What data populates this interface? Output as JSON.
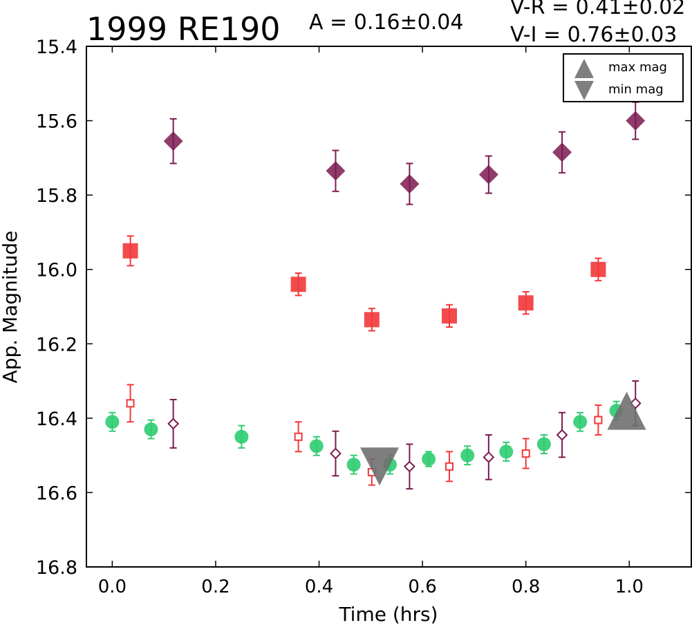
{
  "header": {
    "title": "1999 RE190",
    "amplitude": "A  = 0.16±0.04",
    "color_vr": "V-R = 0.41±0.02",
    "color_vi": "V-I  = 0.76±0.03"
  },
  "legend": {
    "items": [
      {
        "label": "max mag",
        "marker": "triangle-up",
        "color": "#7f7f7f"
      },
      {
        "label": "min mag",
        "marker": "triangle-down",
        "color": "#7f7f7f"
      }
    ]
  },
  "colors": {
    "green": "#2ecc71",
    "red": "#f2373a",
    "purple": "#7b1a50",
    "marker_gray": "#707070"
  },
  "chart_data": {
    "type": "scatter",
    "title": "1999 RE190",
    "xlabel": "Time (hrs)",
    "ylabel": "App. Magnitude",
    "xlim": [
      -0.05,
      1.12
    ],
    "ylim": [
      16.8,
      15.4
    ],
    "y_inverted": true,
    "x_ticks": [
      0.0,
      0.2,
      0.4,
      0.6,
      0.8,
      1.0
    ],
    "x_tick_labels": [
      "0.0",
      "0.2",
      "0.4",
      "0.6",
      "0.8",
      "1.0"
    ],
    "y_ticks": [
      15.4,
      15.6,
      15.8,
      16.0,
      16.2,
      16.4,
      16.6,
      16.8
    ],
    "y_tick_labels": [
      "15.4",
      "15.6",
      "15.8",
      "16.0",
      "16.2",
      "16.4",
      "16.6",
      "16.8"
    ],
    "grid": false,
    "legend_position": "top-right",
    "series": [
      {
        "marker": "circle",
        "filled": true,
        "color": "#2ecc71",
        "points": [
          {
            "x": 0.0,
            "y": 16.41,
            "err": 0.025
          },
          {
            "x": 0.075,
            "y": 16.43,
            "err": 0.025
          },
          {
            "x": 0.25,
            "y": 16.45,
            "err": 0.03
          },
          {
            "x": 0.395,
            "y": 16.475,
            "err": 0.025
          },
          {
            "x": 0.467,
            "y": 16.525,
            "err": 0.025
          },
          {
            "x": 0.537,
            "y": 16.525,
            "err": 0.025
          },
          {
            "x": 0.612,
            "y": 16.51,
            "err": 0.02
          },
          {
            "x": 0.687,
            "y": 16.5,
            "err": 0.025
          },
          {
            "x": 0.762,
            "y": 16.49,
            "err": 0.025
          },
          {
            "x": 0.835,
            "y": 16.47,
            "err": 0.025
          },
          {
            "x": 0.905,
            "y": 16.41,
            "err": 0.025
          },
          {
            "x": 0.975,
            "y": 16.38,
            "err": 0.025
          }
        ]
      },
      {
        "marker": "square",
        "filled": true,
        "color": "#f2373a",
        "points": [
          {
            "x": 0.035,
            "y": 15.95,
            "err": 0.04
          },
          {
            "x": 0.36,
            "y": 16.04,
            "err": 0.03
          },
          {
            "x": 0.502,
            "y": 16.135,
            "err": 0.03
          },
          {
            "x": 0.652,
            "y": 16.125,
            "err": 0.03
          },
          {
            "x": 0.8,
            "y": 16.09,
            "err": 0.03
          },
          {
            "x": 0.94,
            "y": 16.0,
            "err": 0.03
          }
        ]
      },
      {
        "marker": "diamond",
        "filled": true,
        "color": "#7b1a50",
        "points": [
          {
            "x": 0.118,
            "y": 15.655,
            "err": 0.06
          },
          {
            "x": 0.432,
            "y": 15.735,
            "err": 0.055
          },
          {
            "x": 0.575,
            "y": 15.77,
            "err": 0.055
          },
          {
            "x": 0.728,
            "y": 15.745,
            "err": 0.05
          },
          {
            "x": 0.87,
            "y": 15.685,
            "err": 0.055
          },
          {
            "x": 1.012,
            "y": 15.6,
            "err": 0.05
          }
        ]
      },
      {
        "marker": "square",
        "filled": false,
        "color": "#f2373a",
        "points": [
          {
            "x": 0.035,
            "y": 16.36,
            "err": 0.05
          },
          {
            "x": 0.36,
            "y": 16.45,
            "err": 0.04
          },
          {
            "x": 0.502,
            "y": 16.545,
            "err": 0.035
          },
          {
            "x": 0.652,
            "y": 16.53,
            "err": 0.04
          },
          {
            "x": 0.8,
            "y": 16.495,
            "err": 0.04
          },
          {
            "x": 0.94,
            "y": 16.405,
            "err": 0.04
          }
        ]
      },
      {
        "marker": "diamond",
        "filled": false,
        "color": "#7b1a50",
        "points": [
          {
            "x": 0.118,
            "y": 16.415,
            "err": 0.065
          },
          {
            "x": 0.432,
            "y": 16.495,
            "err": 0.06
          },
          {
            "x": 0.575,
            "y": 16.53,
            "err": 0.06
          },
          {
            "x": 0.728,
            "y": 16.505,
            "err": 0.06
          },
          {
            "x": 0.87,
            "y": 16.445,
            "err": 0.06
          },
          {
            "x": 1.012,
            "y": 16.36,
            "err": 0.06
          }
        ]
      }
    ],
    "extrema": [
      {
        "type": "max mag",
        "marker": "triangle-up",
        "x": 0.995,
        "y": 16.38
      },
      {
        "type": "min mag",
        "marker": "triangle-down",
        "x": 0.517,
        "y": 16.53
      }
    ]
  }
}
